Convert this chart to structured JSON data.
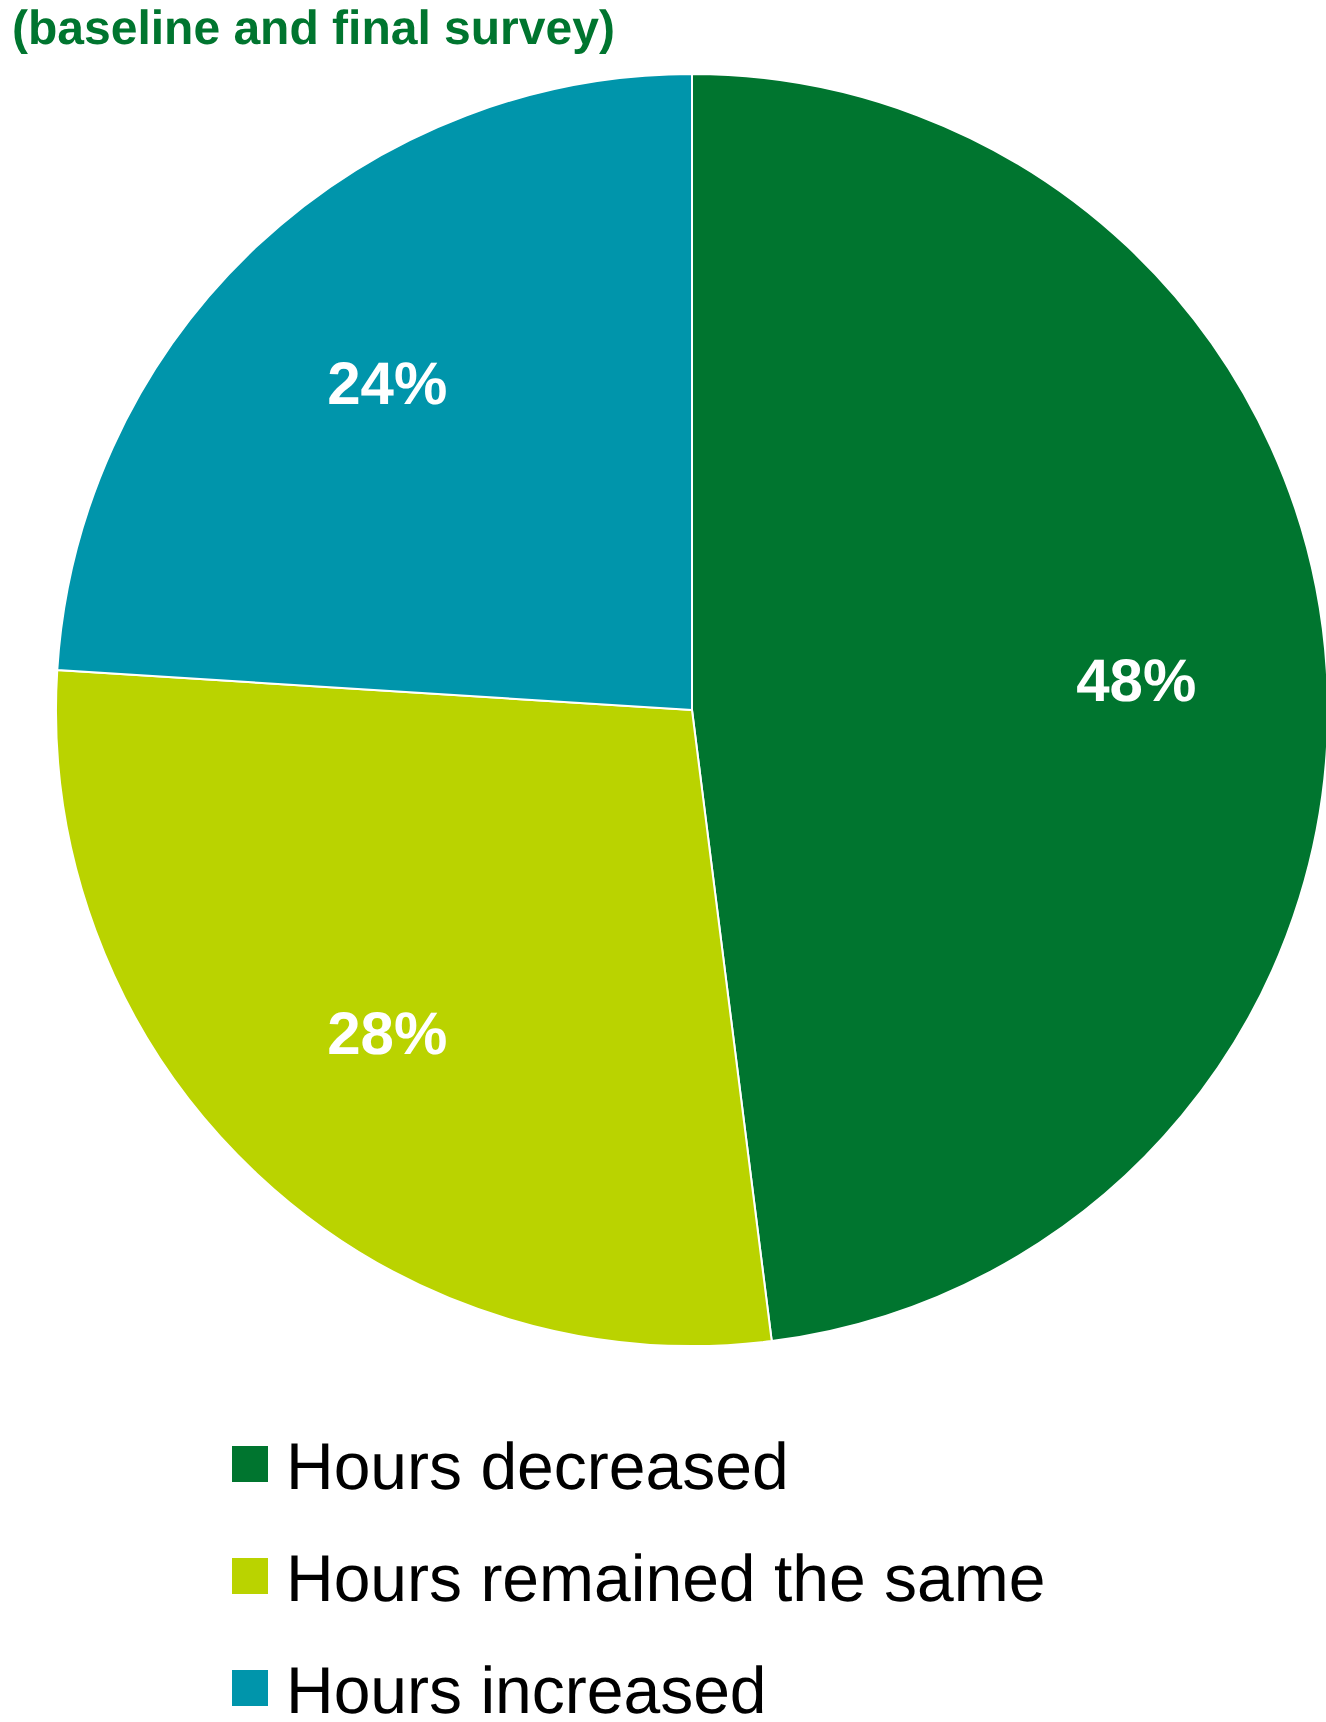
{
  "chart_data": {
    "type": "pie",
    "title": "(baseline and final survey)",
    "categories": [
      "Hours decreased",
      "Hours remained the same",
      "Hours increased"
    ],
    "values": [
      48,
      28,
      24
    ],
    "colors": [
      "#00752f",
      "#bad300",
      "#0095ab"
    ],
    "value_labels": [
      "48%",
      "28%",
      "24%"
    ],
    "legend": "bottom"
  }
}
